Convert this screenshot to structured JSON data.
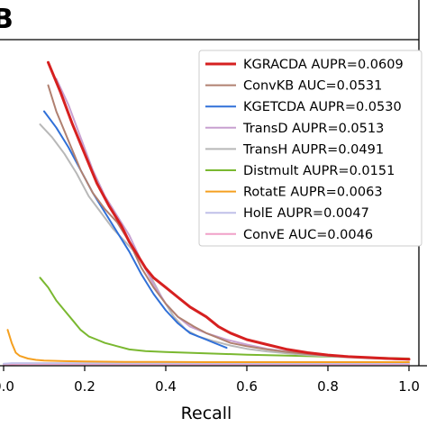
{
  "panel_label": "B",
  "chart_data": {
    "type": "line",
    "title": "",
    "xlabel": "Recall",
    "ylabel": "",
    "xlim": [
      0.0,
      1.0
    ],
    "ylim": [
      0.0,
      1.0
    ],
    "xticks": [
      "0.0",
      "0.2",
      "0.4",
      "0.6",
      "0.8",
      "1.0"
    ],
    "grid": false,
    "legend_position": "top-right",
    "series": [
      {
        "name": "KGRACDA AUPR=0.0609",
        "color": "#d62020",
        "width": 3,
        "x": [
          0.11,
          0.14,
          0.17,
          0.2,
          0.23,
          0.26,
          0.29,
          0.31,
          0.33,
          0.35,
          0.37,
          0.4,
          0.43,
          0.46,
          0.5,
          0.53,
          0.56,
          0.6,
          0.65,
          0.7,
          0.75,
          0.8,
          0.85,
          0.9,
          0.95,
          1.0
        ],
        "y": [
          0.93,
          0.84,
          0.74,
          0.65,
          0.56,
          0.49,
          0.43,
          0.38,
          0.34,
          0.3,
          0.27,
          0.24,
          0.21,
          0.18,
          0.15,
          0.12,
          0.1,
          0.08,
          0.065,
          0.05,
          0.04,
          0.033,
          0.028,
          0.025,
          0.022,
          0.02
        ]
      },
      {
        "name": "ConvKB AUC=0.0531",
        "color": "#b08070",
        "width": 2,
        "x": [
          0.11,
          0.13,
          0.16,
          0.19,
          0.22,
          0.25,
          0.28,
          0.31,
          0.34,
          0.37,
          0.4,
          0.43,
          0.47,
          0.5,
          0.53,
          0.56,
          0.6,
          0.65,
          0.7,
          0.75,
          0.8,
          0.85,
          0.9,
          0.95,
          1.0
        ],
        "y": [
          0.86,
          0.78,
          0.69,
          0.6,
          0.53,
          0.48,
          0.44,
          0.38,
          0.3,
          0.24,
          0.19,
          0.15,
          0.12,
          0.1,
          0.085,
          0.07,
          0.06,
          0.05,
          0.042,
          0.036,
          0.031,
          0.027,
          0.024,
          0.021,
          0.019
        ]
      },
      {
        "name": "KGETCDA AUPR=0.0530",
        "color": "#3070d8",
        "width": 2,
        "x": [
          0.1,
          0.13,
          0.16,
          0.19,
          0.22,
          0.25,
          0.28,
          0.31,
          0.34,
          0.37,
          0.4,
          0.43,
          0.46,
          0.5,
          0.53,
          0.55
        ],
        "y": [
          0.78,
          0.73,
          0.67,
          0.6,
          0.53,
          0.47,
          0.41,
          0.35,
          0.28,
          0.22,
          0.17,
          0.13,
          0.1,
          0.08,
          0.065,
          0.055
        ]
      },
      {
        "name": "TransD AUPR=0.0513",
        "color": "#c8a0d0",
        "width": 2,
        "x": [
          0.13,
          0.16,
          0.19,
          0.22,
          0.25,
          0.28,
          0.31,
          0.34,
          0.37,
          0.4,
          0.43,
          0.46,
          0.5,
          0.55,
          0.6,
          0.65,
          0.7,
          0.75,
          0.8,
          0.85,
          0.9,
          0.95,
          1.0
        ],
        "y": [
          0.88,
          0.8,
          0.7,
          0.6,
          0.52,
          0.46,
          0.4,
          0.32,
          0.25,
          0.19,
          0.15,
          0.12,
          0.1,
          0.08,
          0.065,
          0.052,
          0.043,
          0.036,
          0.031,
          0.027,
          0.024,
          0.021,
          0.019
        ]
      },
      {
        "name": "TransH AUPR=0.0491",
        "color": "#b8b8b8",
        "width": 2,
        "x": [
          0.09,
          0.12,
          0.15,
          0.18,
          0.21,
          0.24,
          0.27,
          0.3,
          0.33,
          0.36,
          0.39,
          0.42,
          0.45,
          0.48,
          0.52,
          0.56,
          0.6,
          0.65,
          0.7,
          0.75,
          0.8,
          0.85,
          0.9,
          0.95,
          1.0
        ],
        "y": [
          0.74,
          0.7,
          0.65,
          0.59,
          0.52,
          0.47,
          0.42,
          0.38,
          0.34,
          0.28,
          0.21,
          0.15,
          0.11,
          0.09,
          0.075,
          0.062,
          0.052,
          0.044,
          0.038,
          0.033,
          0.029,
          0.026,
          0.023,
          0.021,
          0.019
        ]
      },
      {
        "name": "Distmult AUPR=0.0151",
        "color": "#7ab830",
        "width": 2,
        "x": [
          0.09,
          0.11,
          0.13,
          0.15,
          0.17,
          0.19,
          0.21,
          0.23,
          0.25,
          0.28,
          0.31,
          0.35,
          0.4,
          0.45,
          0.5,
          0.6,
          0.7,
          0.8,
          0.9,
          1.0
        ],
        "y": [
          0.27,
          0.24,
          0.2,
          0.17,
          0.14,
          0.11,
          0.09,
          0.08,
          0.07,
          0.06,
          0.05,
          0.045,
          0.042,
          0.04,
          0.038,
          0.034,
          0.031,
          0.028,
          0.025,
          0.022
        ]
      },
      {
        "name": "RotatE AUPR=0.0063",
        "color": "#f5a020",
        "width": 2,
        "x": [
          0.01,
          0.02,
          0.03,
          0.04,
          0.06,
          0.08,
          0.1,
          0.15,
          0.2,
          0.3,
          0.4,
          0.5,
          0.6,
          0.7,
          0.8,
          0.9,
          1.0
        ],
        "y": [
          0.11,
          0.07,
          0.04,
          0.03,
          0.022,
          0.018,
          0.016,
          0.014,
          0.013,
          0.012,
          0.012,
          0.011,
          0.011,
          0.011,
          0.011,
          0.011,
          0.011
        ]
      },
      {
        "name": "HolE AUPR=0.0047",
        "color": "#c0c0e8",
        "width": 2,
        "x": [
          0.0,
          0.01,
          0.02,
          0.05,
          0.1,
          0.2,
          0.3,
          0.4,
          0.5,
          0.6,
          0.7,
          0.8,
          0.9,
          1.0
        ],
        "y": [
          0.006,
          0.007,
          0.008,
          0.008,
          0.008,
          0.008,
          0.008,
          0.008,
          0.008,
          0.008,
          0.008,
          0.008,
          0.008,
          0.008
        ]
      },
      {
        "name": "ConvE AUC=0.0046",
        "color": "#f0a0c8",
        "width": 2,
        "x": [
          0.0,
          0.05,
          0.1,
          0.2,
          0.3,
          0.4,
          0.5,
          0.6,
          0.7,
          0.8,
          0.9,
          1.0
        ],
        "y": [
          0.004,
          0.005,
          0.005,
          0.005,
          0.005,
          0.005,
          0.005,
          0.005,
          0.005,
          0.005,
          0.005,
          0.005
        ]
      }
    ]
  }
}
